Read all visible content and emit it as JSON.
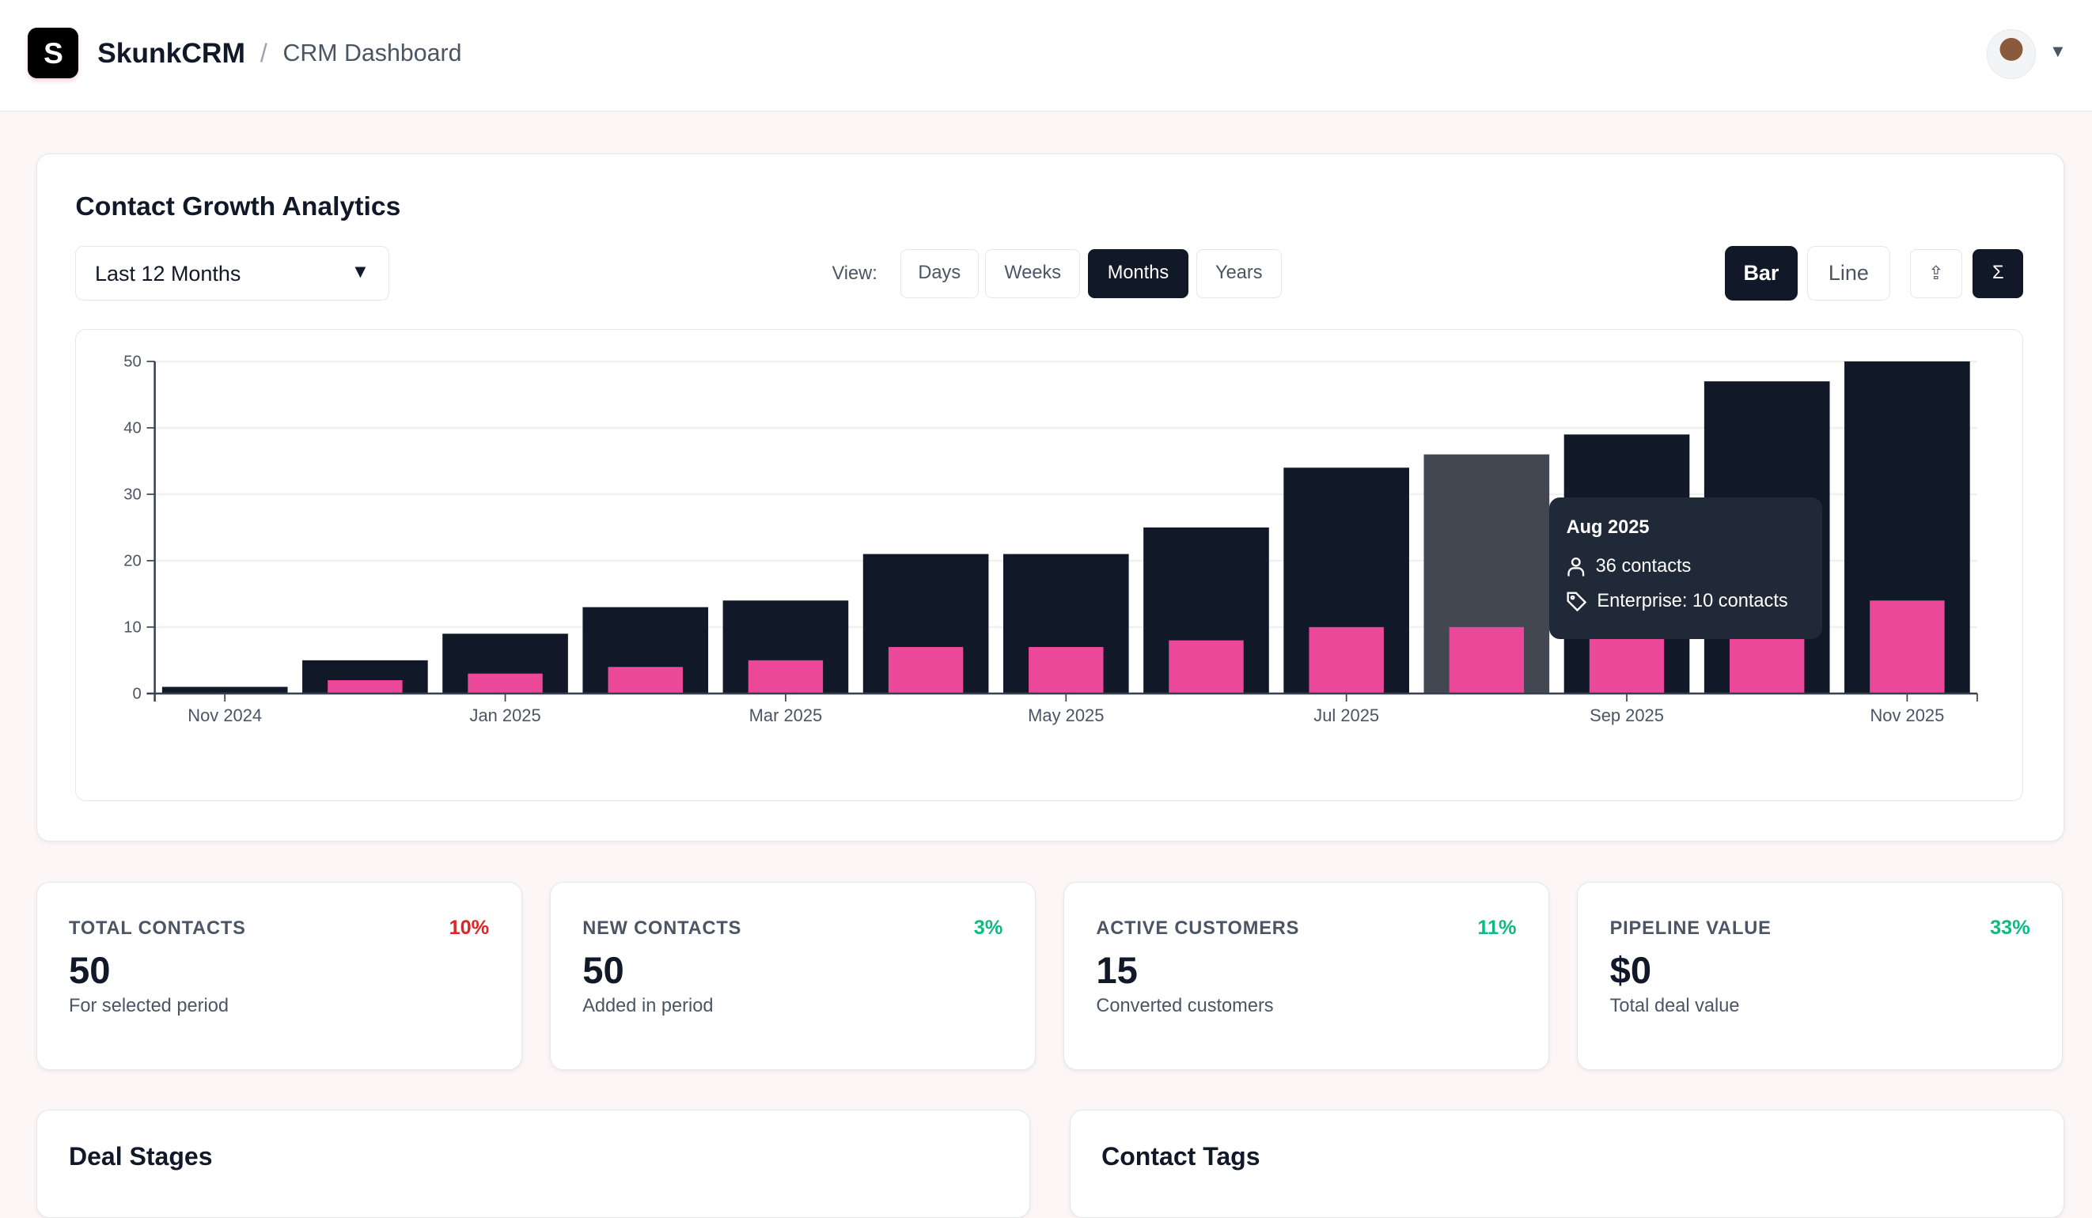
{
  "header": {
    "logo_letter": "S",
    "brand": "SkunkCRM",
    "separator": "/",
    "page": "CRM Dashboard"
  },
  "analytics": {
    "title": "Contact Growth Analytics",
    "range_select": "Last 12 Months",
    "view_label": "View:",
    "views": [
      {
        "label": "Days",
        "active": false
      },
      {
        "label": "Weeks",
        "active": false
      },
      {
        "label": "Months",
        "active": true
      },
      {
        "label": "Years",
        "active": false
      }
    ],
    "chart_types": [
      {
        "label": "Bar",
        "active": true
      },
      {
        "label": "Line",
        "active": false
      }
    ],
    "export_icon": "upload-icon",
    "cumulative_icon": "sigma-icon",
    "tooltip": {
      "title": "Aug 2025",
      "contacts": "36 contacts",
      "tag": "Enterprise: 10 contacts"
    }
  },
  "chart_data": {
    "type": "bar",
    "categories": [
      "Nov 2024",
      "Dec 2024",
      "Jan 2025",
      "Feb 2025",
      "Mar 2025",
      "Apr 2025",
      "May 2025",
      "Jun 2025",
      "Jul 2025",
      "Aug 2025",
      "Sep 2025",
      "Oct 2025",
      "Nov 2025"
    ],
    "x_tick_labels": [
      "Nov 2024",
      "Jan 2025",
      "Mar 2025",
      "May 2025",
      "Jul 2025",
      "Sep 2025",
      "Nov 2025"
    ],
    "series": [
      {
        "name": "contacts",
        "values": [
          1,
          5,
          9,
          13,
          14,
          21,
          21,
          25,
          34,
          36,
          39,
          47,
          50
        ],
        "color": "#111827"
      },
      {
        "name": "Enterprise",
        "values": [
          0,
          2,
          3,
          4,
          5,
          7,
          7,
          8,
          10,
          10,
          9,
          10,
          14
        ],
        "color": "#ec4899"
      }
    ],
    "highlighted": "Aug 2025",
    "highlight_color": "#434752",
    "ylim": [
      0,
      50
    ],
    "yticks": [
      0,
      10,
      20,
      30,
      40,
      50
    ],
    "grid": true
  },
  "stats": [
    {
      "label": "TOTAL CONTACTS",
      "value": "50",
      "change": "10%",
      "change_color": "#dc2626",
      "sub": "For selected period"
    },
    {
      "label": "NEW CONTACTS",
      "value": "50",
      "change": "3%",
      "change_color": "#10b981",
      "sub": "Added in period"
    },
    {
      "label": "ACTIVE CUSTOMERS",
      "value": "15",
      "change": "11%",
      "change_color": "#10b981",
      "sub": "Converted customers"
    },
    {
      "label": "PIPELINE VALUE",
      "value": "$0",
      "change": "33%",
      "change_color": "#10b981",
      "sub": "Total deal value"
    }
  ],
  "panels": [
    {
      "title": "Deal Stages"
    },
    {
      "title": "Contact Tags"
    }
  ]
}
